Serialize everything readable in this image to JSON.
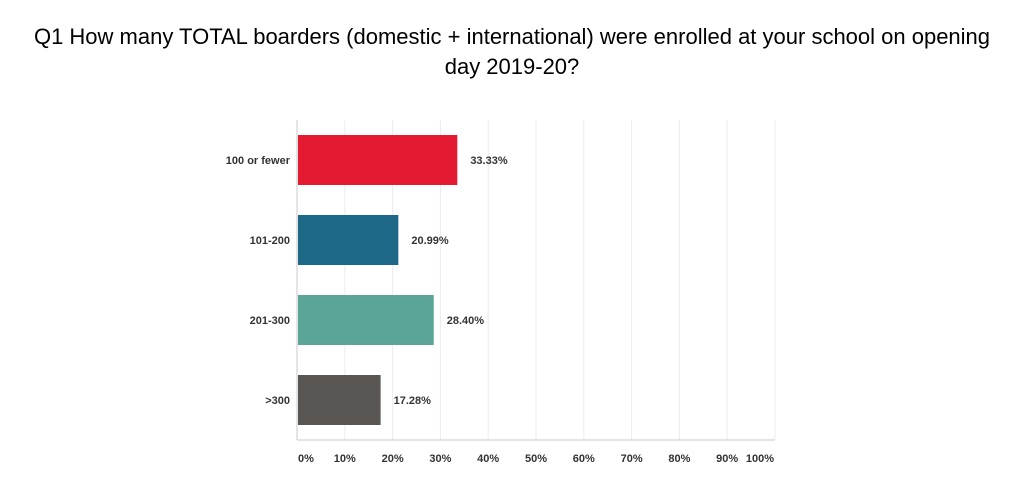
{
  "chart_data": {
    "type": "bar",
    "orientation": "horizontal",
    "title": "Q1 How many TOTAL boarders (domestic + international) were enrolled at your school on opening day 2019-20?",
    "categories": [
      "100 or fewer",
      "101-200",
      "201-300",
      ">300"
    ],
    "values": [
      33.33,
      20.99,
      28.4,
      17.28
    ],
    "data_labels": [
      "33.33%",
      "20.99%",
      "28.40%",
      "17.28%"
    ],
    "colors": [
      "#e31a32",
      "#1e6887",
      "#5aa595",
      "#5a5653"
    ],
    "xlim": [
      0,
      100
    ],
    "x_ticks": [
      0,
      10,
      20,
      30,
      40,
      50,
      60,
      70,
      80,
      90,
      100
    ],
    "x_tick_labels": [
      "0%",
      "10%",
      "20%",
      "30%",
      "40%",
      "50%",
      "60%",
      "70%",
      "80%",
      "90%",
      "100%"
    ],
    "grid": true,
    "legend": "none"
  }
}
